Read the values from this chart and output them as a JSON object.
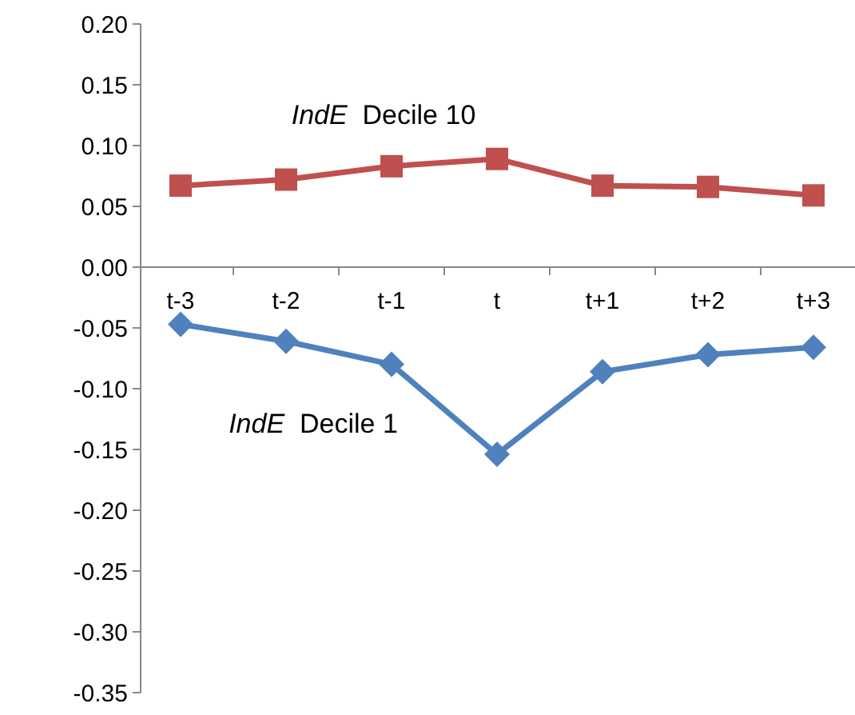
{
  "chart_data": {
    "type": "line",
    "categories": [
      "t-3",
      "t-2",
      "t-1",
      "t",
      "t+1",
      "t+2",
      "t+3"
    ],
    "series": [
      {
        "name": "IndE Decile 10",
        "color": "#c0504d",
        "marker": "square",
        "values": [
          0.067,
          0.072,
          0.083,
          0.089,
          0.067,
          0.066,
          0.059
        ]
      },
      {
        "name": "IndE Decile 1",
        "color": "#4f81bd",
        "marker": "diamond",
        "values": [
          -0.047,
          -0.061,
          -0.08,
          -0.154,
          -0.086,
          -0.072,
          -0.066
        ]
      }
    ],
    "ylim": [
      -0.35,
      0.2
    ],
    "yticks": [
      {
        "value": 0.2,
        "label": "0.20"
      },
      {
        "value": 0.15,
        "label": "0.15"
      },
      {
        "value": 0.1,
        "label": "0.10"
      },
      {
        "value": 0.05,
        "label": "0.05"
      },
      {
        "value": 0,
        "label": "0.00"
      },
      {
        "value": -0.05,
        "label": "-0.05"
      },
      {
        "value": -0.1,
        "label": "-0.10"
      },
      {
        "value": -0.15,
        "label": "-0.15"
      },
      {
        "value": -0.2,
        "label": "-0.20"
      },
      {
        "value": -0.25,
        "label": "-0.25"
      },
      {
        "value": -0.3,
        "label": "-0.30"
      },
      {
        "value": -0.35,
        "label": "-0.35"
      }
    ],
    "grid": false,
    "legend": false,
    "line_style": "solid"
  }
}
